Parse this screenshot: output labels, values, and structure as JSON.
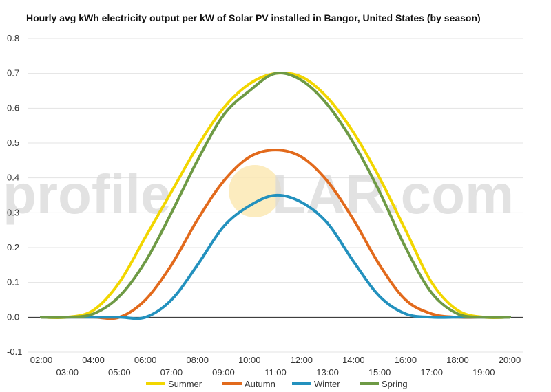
{
  "watermark": {
    "left": "profile",
    "right": "LAR.com"
  },
  "chart_data": {
    "type": "line",
    "title": "Hourly avg kWh electricity output per kW of Solar PV installed in Bangor, United States (by season)",
    "xlabel": "",
    "ylabel": "",
    "ylim": [
      -0.1,
      0.8
    ],
    "yticks": [
      "-0.1",
      "0.0",
      "0.1",
      "0.2",
      "0.3",
      "0.4",
      "0.5",
      "0.6",
      "0.7",
      "0.8"
    ],
    "xticks_upper": [
      "02:00",
      "04:00",
      "06:00",
      "08:00",
      "10:00",
      "12:00",
      "14:00",
      "16:00",
      "18:00",
      "20:00"
    ],
    "xticks_lower": [
      "03:00",
      "05:00",
      "07:00",
      "09:00",
      "11:00",
      "13:00",
      "15:00",
      "17:00",
      "19:00"
    ],
    "grid": true,
    "legend_position": "bottom",
    "x": [
      "02:00",
      "03:00",
      "04:00",
      "05:00",
      "06:00",
      "07:00",
      "08:00",
      "09:00",
      "10:00",
      "11:00",
      "12:00",
      "13:00",
      "14:00",
      "15:00",
      "16:00",
      "17:00",
      "18:00",
      "19:00",
      "20:00"
    ],
    "series": [
      {
        "name": "Summer",
        "color": "#f2d600",
        "values": [
          0.0,
          0.0,
          0.02,
          0.1,
          0.23,
          0.36,
          0.49,
          0.6,
          0.67,
          0.7,
          0.69,
          0.63,
          0.53,
          0.4,
          0.25,
          0.1,
          0.02,
          0.0,
          0.0
        ]
      },
      {
        "name": "Autumn",
        "color": "#e26a1c",
        "values": [
          0.0,
          0.0,
          0.0,
          0.0,
          0.05,
          0.15,
          0.28,
          0.39,
          0.46,
          0.48,
          0.46,
          0.39,
          0.28,
          0.15,
          0.05,
          0.01,
          0.0,
          0.0,
          0.0
        ]
      },
      {
        "name": "Winter",
        "color": "#2391be",
        "values": [
          0.0,
          0.0,
          0.0,
          0.0,
          0.0,
          0.05,
          0.15,
          0.26,
          0.32,
          0.35,
          0.33,
          0.27,
          0.16,
          0.06,
          0.01,
          0.0,
          0.0,
          0.0,
          0.0
        ]
      },
      {
        "name": "Spring",
        "color": "#6e9a45",
        "values": [
          0.0,
          0.0,
          0.01,
          0.06,
          0.16,
          0.3,
          0.45,
          0.58,
          0.65,
          0.7,
          0.68,
          0.61,
          0.5,
          0.36,
          0.2,
          0.07,
          0.01,
          0.0,
          0.0
        ]
      }
    ]
  }
}
